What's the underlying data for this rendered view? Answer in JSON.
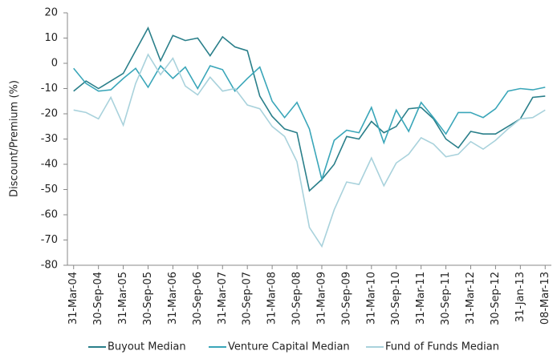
{
  "chart_data": {
    "type": "line",
    "y_label": "Discount/Premium (%)",
    "categories": [
      "31-Mar-04",
      null,
      "30-Sep-04",
      null,
      "31-Mar-05",
      null,
      "30-Sep-05",
      null,
      "31-Mar-06",
      null,
      "30-Sep-06",
      null,
      "31-Mar-07",
      null,
      "30-Sep-07",
      null,
      "31-Mar-08",
      null,
      "30-Sep-08",
      null,
      "31-Mar-09",
      null,
      "30-Sep-09",
      null,
      "31-Mar-10",
      null,
      "30-Sep-10",
      null,
      "31-Mar-11",
      null,
      "30-Sep-11",
      null,
      "31-Mar-12",
      null,
      "30-Sep-12",
      null,
      "31-Jan-13",
      null,
      "08-Mar-13"
    ],
    "series": [
      {
        "name": "Buyout Median",
        "color": "#2a7f8a",
        "values": [
          -11,
          -7,
          -10,
          -7,
          -4,
          5,
          14,
          1,
          11,
          9,
          10,
          3,
          10.5,
          6.5,
          5,
          -13,
          -21,
          -26,
          -27.5,
          -50.5,
          -46,
          -40,
          -29,
          -30,
          -23,
          -27.5,
          -25,
          -18,
          -17.5,
          -22,
          -30,
          -33.5,
          -27,
          -28,
          -28,
          -25,
          -22,
          -13.5,
          -13
        ]
      },
      {
        "name": "Venture Capital Median",
        "color": "#3aa6b9",
        "values": [
          -2,
          -8,
          -11,
          -10.5,
          -6,
          -2,
          -9.5,
          -1,
          -6,
          -1.5,
          -10,
          -1,
          -2.5,
          -11,
          -6,
          -1.5,
          -15,
          -21.5,
          -15.5,
          -26,
          -46,
          -30.5,
          -26.5,
          -27.5,
          -17.5,
          -31.5,
          -18.5,
          -27,
          -15.5,
          -21.5,
          -28,
          -19.5,
          -19.5,
          -21.5,
          -18,
          -11,
          -10,
          -10.5,
          -9.5
        ]
      },
      {
        "name": "Fund of Funds Median",
        "color": "#a9d2dc",
        "values": [
          -18.5,
          -19.5,
          -22,
          -13.5,
          -24.5,
          -8,
          3.5,
          -4.5,
          2,
          -9,
          -12.5,
          -5.5,
          -11,
          -10,
          -16.5,
          -18,
          -25,
          -29,
          -39,
          -65,
          -72.5,
          -58,
          -47,
          -48,
          -37.5,
          -48.5,
          -39.5,
          -36,
          -29.5,
          -32,
          -37,
          -36,
          -31,
          -34,
          -30.5,
          -26,
          -22,
          -21.5,
          -18.5
        ]
      }
    ],
    "ylim": [
      -80,
      20
    ],
    "yticks": [
      -80,
      -70,
      -60,
      -50,
      -40,
      -30,
      -20,
      -10,
      0,
      10,
      20
    ],
    "legend": "bottom"
  }
}
